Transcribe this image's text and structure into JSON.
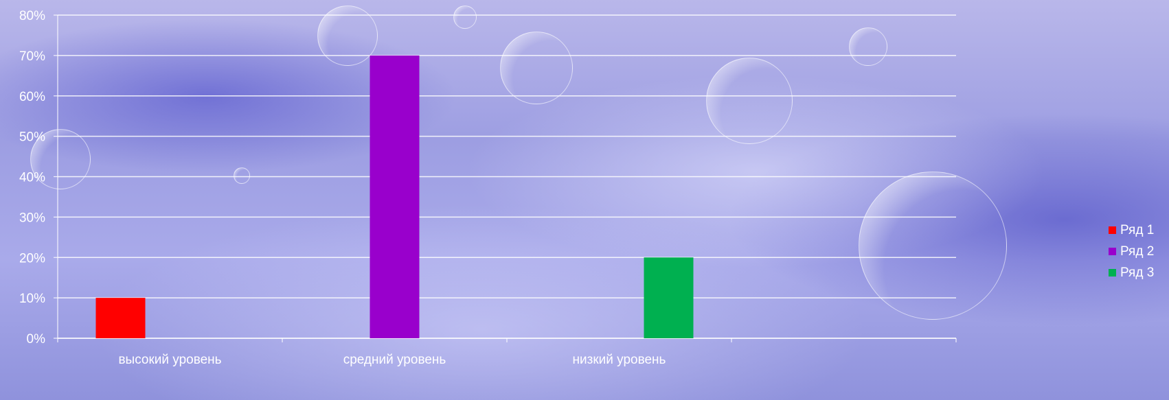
{
  "chart_data": {
    "type": "bar",
    "categories": [
      "высокий уровень",
      "средний уровень",
      "низкий уровень",
      ""
    ],
    "series": [
      {
        "name": "Ряд 1",
        "color": "#ff0000",
        "values": [
          10,
          0,
          0,
          0
        ]
      },
      {
        "name": "Ряд 2",
        "color": "#9900cc",
        "values": [
          0,
          70,
          0,
          0
        ]
      },
      {
        "name": "Ряд 3",
        "color": "#00b050",
        "values": [
          0,
          0,
          20,
          0
        ]
      }
    ],
    "ylim": [
      0,
      80
    ],
    "yticks": [
      "0%",
      "10%",
      "20%",
      "30%",
      "40%",
      "50%",
      "60%",
      "70%",
      "80%"
    ],
    "grid": true,
    "legend": "right"
  }
}
